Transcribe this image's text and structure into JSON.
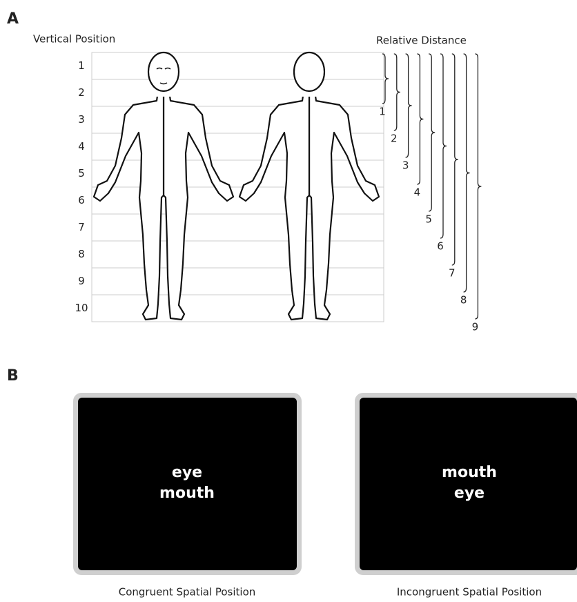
{
  "panel_a": {
    "label": "A",
    "vertical_position": {
      "title": "Vertical Position",
      "rows": [
        1,
        2,
        3,
        4,
        5,
        6,
        7,
        8,
        9,
        10
      ]
    },
    "relative_distance": {
      "title": "Relative Distance",
      "distances": [
        1,
        2,
        3,
        4,
        5,
        6,
        7,
        8,
        9
      ]
    }
  },
  "panel_b": {
    "label": "B",
    "screens": [
      {
        "words": [
          "eye",
          "mouth"
        ],
        "caption": "Congruent Spatial Position"
      },
      {
        "words": [
          "mouth",
          "eye"
        ],
        "caption": "Incongruent Spatial Position"
      }
    ]
  }
}
